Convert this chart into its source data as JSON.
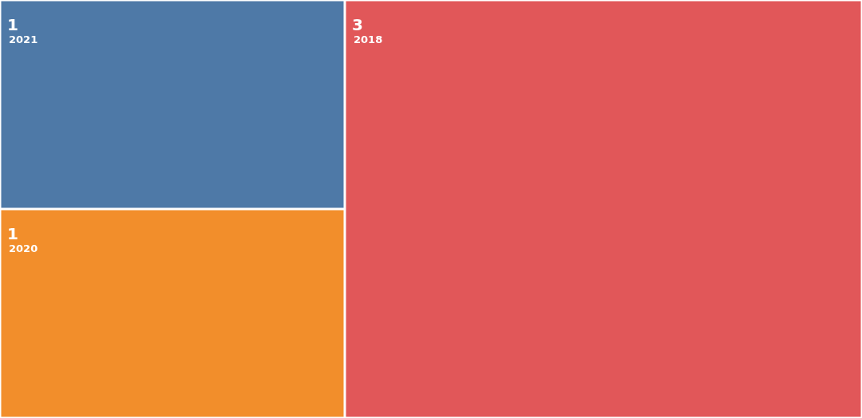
{
  "chart_data": {
    "type": "other",
    "categories": [
      "2021",
      "2020",
      "2018"
    ],
    "values": [
      1,
      1,
      3
    ],
    "colors": [
      "#4e79a7",
      "#f28e2b",
      "#e15759"
    ],
    "data_labels": true
  }
}
